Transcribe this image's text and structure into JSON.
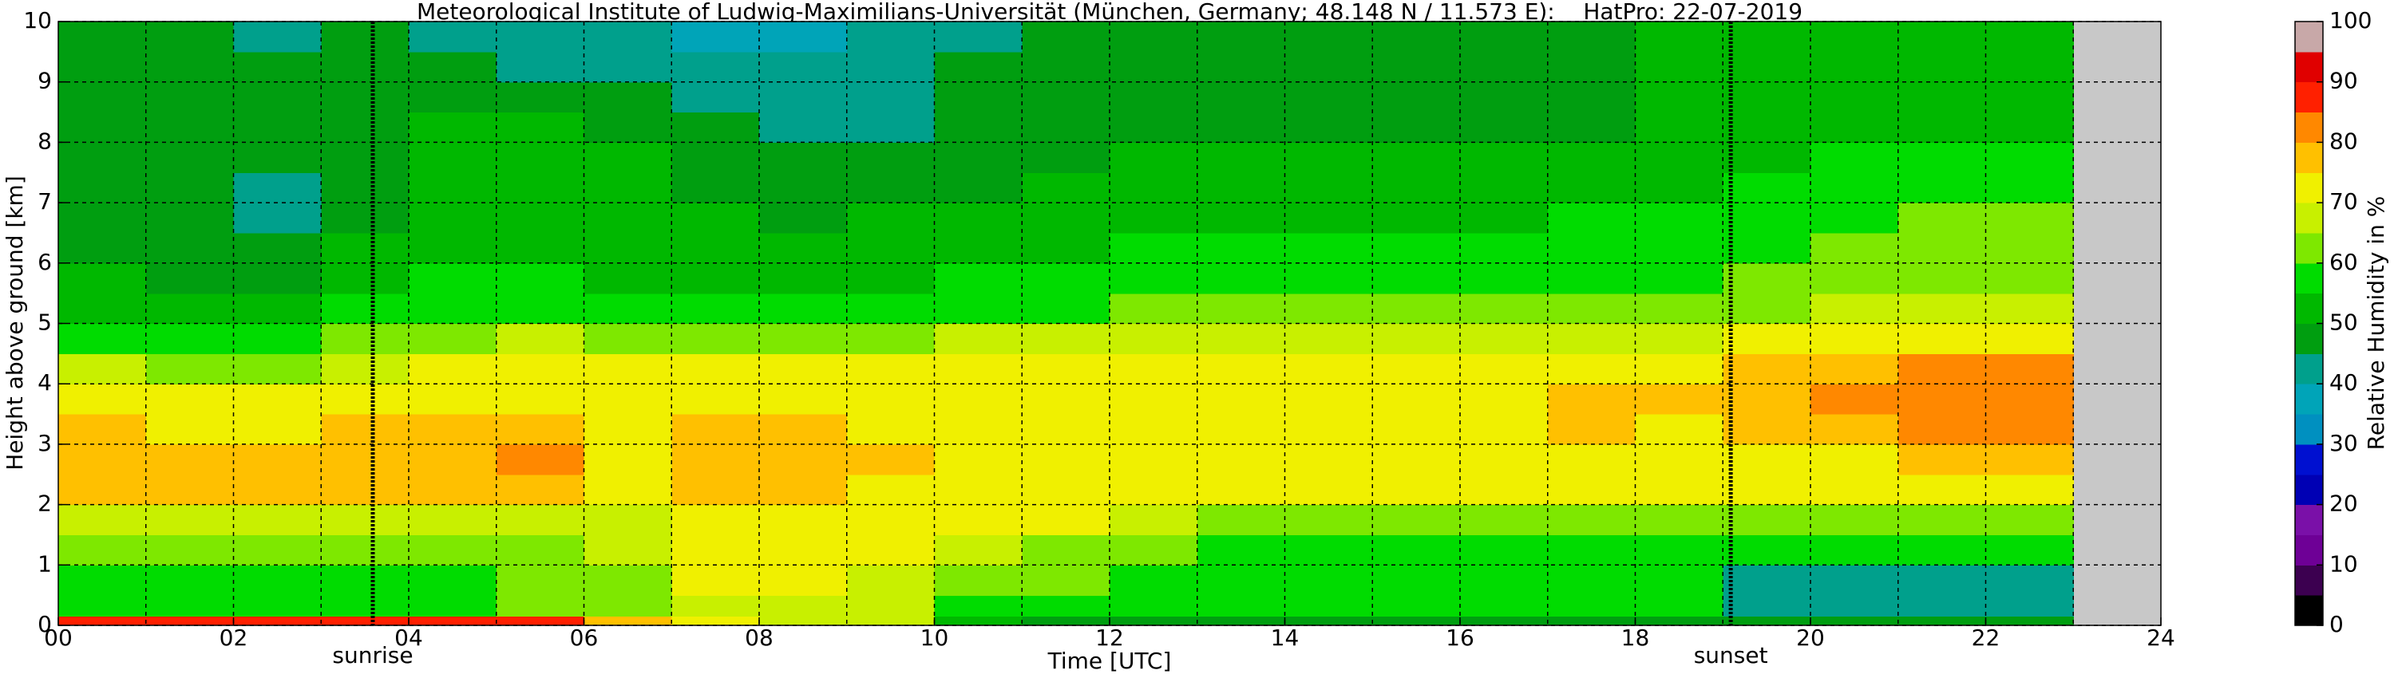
{
  "chart_data": {
    "type": "heatmap",
    "title": "Meteorological Institute of Ludwig-Maximilians-Universität (München, Germany; 48.148 N / 11.573 E):    HatPro: 22-07-2019",
    "xlabel": "Time [UTC]",
    "ylabel": "Height above ground [km]",
    "xlim": [
      0,
      24
    ],
    "ylim": [
      0,
      10
    ],
    "xticks": [
      {
        "value": 0,
        "label": "00"
      },
      {
        "value": 2,
        "label": "02"
      },
      {
        "value": 4,
        "label": "04"
      },
      {
        "value": 6,
        "label": "06"
      },
      {
        "value": 8,
        "label": "08"
      },
      {
        "value": 10,
        "label": "10"
      },
      {
        "value": 12,
        "label": "12"
      },
      {
        "value": 14,
        "label": "14"
      },
      {
        "value": 16,
        "label": "16"
      },
      {
        "value": 18,
        "label": "18"
      },
      {
        "value": 20,
        "label": "20"
      },
      {
        "value": 22,
        "label": "22"
      },
      {
        "value": 24,
        "label": "24"
      }
    ],
    "yticks": [
      0,
      1,
      2,
      3,
      4,
      5,
      6,
      7,
      8,
      9,
      10
    ],
    "xgrid": [
      1,
      2,
      3,
      4,
      5,
      6,
      7,
      8,
      9,
      10,
      11,
      12,
      13,
      14,
      15,
      16,
      17,
      18,
      19,
      20,
      21,
      22,
      23
    ],
    "grid": true,
    "xbins": [
      0,
      1,
      2,
      3,
      4,
      5,
      6,
      7,
      8,
      9,
      10,
      11,
      12,
      13,
      14,
      15,
      16,
      17,
      18,
      19,
      20,
      21,
      22,
      23
    ],
    "ybins": [
      0,
      0.15,
      0.5,
      1,
      1.5,
      2,
      2.5,
      3,
      3.5,
      4,
      4.5,
      5,
      5.5,
      6,
      6.5,
      7,
      7.5,
      8,
      8.5,
      9,
      9.5,
      10
    ],
    "z": [
      [
        88,
        88,
        88,
        88,
        88,
        85,
        78,
        70,
        68,
        65,
        50,
        45,
        45,
        45,
        45,
        45,
        45,
        45,
        45,
        48,
        48,
        48,
        48
      ],
      [
        58,
        58,
        58,
        58,
        57,
        60,
        60,
        68,
        68,
        66,
        55,
        55,
        56,
        56,
        56,
        56,
        56,
        56,
        56,
        40,
        40,
        40,
        40
      ],
      [
        57,
        57,
        58,
        58,
        58,
        62,
        62,
        70,
        70,
        68,
        60,
        60,
        58,
        57,
        57,
        57,
        57,
        57,
        57,
        42,
        42,
        42,
        42
      ],
      [
        62,
        62,
        63,
        63,
        63,
        63,
        65,
        72,
        72,
        70,
        66,
        62,
        60,
        58,
        58,
        58,
        58,
        58,
        58,
        55,
        55,
        55,
        55
      ],
      [
        68,
        68,
        68,
        68,
        68,
        68,
        68,
        72,
        72,
        72,
        70,
        70,
        65,
        62,
        62,
        62,
        62,
        62,
        62,
        60,
        60,
        60,
        60
      ],
      [
        76,
        76,
        75,
        76,
        76,
        78,
        72,
        76,
        76,
        74,
        72,
        72,
        72,
        72,
        72,
        72,
        72,
        72,
        72,
        72,
        72,
        74,
        74
      ],
      [
        77,
        77,
        76,
        77,
        78,
        80,
        72,
        77,
        77,
        75,
        73,
        72,
        72,
        72,
        72,
        72,
        72,
        73,
        73,
        74,
        74,
        76,
        78
      ],
      [
        75,
        74,
        74,
        75,
        76,
        78,
        72,
        76,
        75,
        74,
        73,
        73,
        73,
        73,
        73,
        73,
        73,
        76,
        74,
        76,
        78,
        82,
        83
      ],
      [
        72,
        70,
        70,
        72,
        74,
        74,
        72,
        74,
        74,
        73,
        72,
        73,
        73,
        73,
        73,
        73,
        74,
        77,
        75,
        77,
        80,
        83,
        83
      ],
      [
        65,
        62,
        62,
        68,
        72,
        72,
        70,
        70,
        70,
        70,
        70,
        71,
        72,
        72,
        72,
        72,
        72,
        73,
        73,
        75,
        77,
        80,
        80
      ],
      [
        58,
        55,
        55,
        60,
        64,
        66,
        62,
        62,
        62,
        64,
        65,
        66,
        67,
        68,
        68,
        68,
        68,
        68,
        68,
        70,
        72,
        73,
        73
      ],
      [
        52,
        52,
        52,
        55,
        58,
        58,
        55,
        55,
        56,
        57,
        58,
        58,
        60,
        60,
        60,
        60,
        60,
        62,
        62,
        62,
        65,
        67,
        67
      ],
      [
        50,
        48,
        48,
        52,
        55,
        55,
        52,
        52,
        52,
        54,
        55,
        55,
        57,
        57,
        57,
        57,
        57,
        59,
        59,
        60,
        62,
        64,
        64
      ],
      [
        48,
        45,
        45,
        50,
        52,
        52,
        50,
        50,
        50,
        52,
        52,
        54,
        55,
        55,
        55,
        55,
        55,
        57,
        57,
        58,
        60,
        62,
        62
      ],
      [
        48,
        45,
        44,
        48,
        50,
        50,
        50,
        50,
        48,
        50,
        50,
        52,
        54,
        54,
        54,
        54,
        54,
        55,
        55,
        57,
        58,
        60,
        60
      ],
      [
        48,
        45,
        44,
        48,
        50,
        50,
        50,
        48,
        46,
        47,
        48,
        50,
        52,
        52,
        52,
        52,
        52,
        52,
        53,
        55,
        56,
        58,
        58
      ],
      [
        48,
        46,
        45,
        48,
        50,
        50,
        50,
        48,
        45,
        46,
        47,
        49,
        50,
        50,
        50,
        50,
        50,
        50,
        52,
        54,
        55,
        56,
        56
      ],
      [
        48,
        47,
        46,
        48,
        50,
        50,
        48,
        46,
        43,
        44,
        46,
        48,
        49,
        49,
        49,
        49,
        49,
        49,
        50,
        52,
        53,
        54,
        54
      ],
      [
        48,
        47,
        46,
        48,
        48,
        47,
        45,
        44,
        42,
        42,
        45,
        48,
        49,
        49,
        49,
        49,
        49,
        49,
        50,
        51,
        52,
        53,
        53
      ],
      [
        48,
        46,
        45,
        47,
        46,
        44,
        42,
        40,
        40,
        41,
        45,
        48,
        49,
        49,
        49,
        49,
        49,
        49,
        50,
        51,
        52,
        52,
        52
      ],
      [
        47,
        45,
        44,
        46,
        44,
        42,
        40,
        38,
        38,
        40,
        44,
        48,
        49,
        49,
        49,
        49,
        49,
        49,
        50,
        51,
        52,
        52,
        52
      ]
    ],
    "missing_color": "#c8c8c8",
    "annotations": [
      {
        "text": "sunrise",
        "x": 3.59
      },
      {
        "text": "sunset",
        "x": 19.09
      }
    ],
    "colorbar": {
      "label": "Relative Humidity in %",
      "levels": [
        0,
        5,
        10,
        15,
        20,
        25,
        30,
        35,
        40,
        45,
        50,
        55,
        60,
        65,
        70,
        75,
        80,
        85,
        90,
        95,
        100
      ],
      "colors": [
        "#000000",
        "#3c0050",
        "#6e0096",
        "#7a10a8",
        "#0000b4",
        "#0010d0",
        "#0090c0",
        "#00a4b8",
        "#00a08c",
        "#009e10",
        "#00b800",
        "#00dc00",
        "#7ee800",
        "#c8f000",
        "#f0f000",
        "#ffc000",
        "#ff8800",
        "#ff2000",
        "#e00000",
        "#c8a8a8"
      ],
      "ticks": [
        0,
        10,
        20,
        30,
        40,
        50,
        60,
        70,
        80,
        90,
        100
      ]
    }
  }
}
